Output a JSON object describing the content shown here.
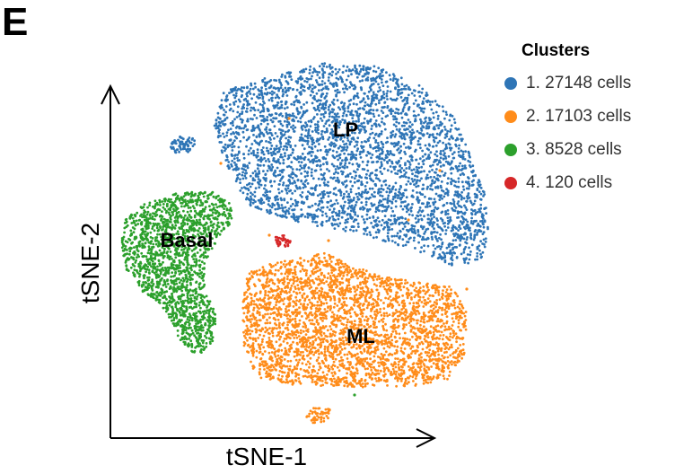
{
  "panel_label": "E",
  "legend": {
    "title": "Clusters",
    "items": [
      {
        "label": "1. 27148 cells",
        "color": "#2E75B6"
      },
      {
        "label": "2. 17103 cells",
        "color": "#FF8C1A"
      },
      {
        "label": "3. 8528 cells",
        "color": "#2CA02C"
      },
      {
        "label": "4. 120 cells",
        "color": "#D62728"
      }
    ]
  },
  "chart_data": {
    "type": "scatter",
    "xlabel": "tSNE-1",
    "ylabel": "tSNE-2",
    "series": [
      {
        "name": "1. 27148 cells",
        "cluster_label": "LP",
        "cells": 27148,
        "color": "#2E75B6"
      },
      {
        "name": "2. 17103 cells",
        "cluster_label": "ML",
        "cells": 17103,
        "color": "#FF8C1A"
      },
      {
        "name": "3. 8528 cells",
        "cluster_label": "Basal",
        "cells": 8528,
        "color": "#2CA02C"
      },
      {
        "name": "4. 120 cells",
        "cluster_label": "",
        "cells": 120,
        "color": "#D62728"
      }
    ],
    "annotations": [
      "LP",
      "ML",
      "Basal"
    ],
    "grid": false,
    "legend_position": "top-right"
  }
}
